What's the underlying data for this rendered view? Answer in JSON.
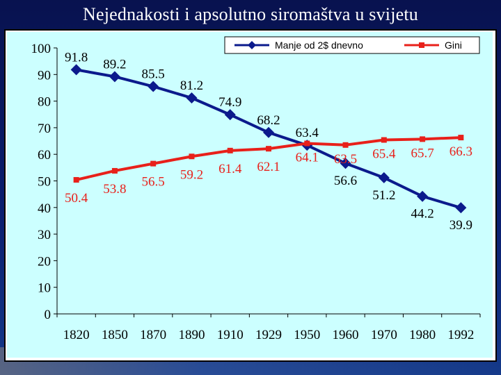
{
  "slide": {
    "title": "Nejednakosti i apsolutno siromaštva u svijetu"
  },
  "chart_data": {
    "type": "line",
    "categories": [
      "1820",
      "1850",
      "1870",
      "1890",
      "1910",
      "1929",
      "1950",
      "1960",
      "1970",
      "1980",
      "1992"
    ],
    "series": [
      {
        "name": "Manje od 2$ dnevno",
        "color": "#0b1a8c",
        "marker": "diamond",
        "values": [
          91.8,
          89.2,
          85.5,
          81.2,
          74.9,
          68.2,
          63.4,
          56.6,
          51.2,
          44.2,
          39.9
        ]
      },
      {
        "name": "Gini",
        "color": "#e8201a",
        "marker": "square",
        "values": [
          50.4,
          53.8,
          56.5,
          59.2,
          61.4,
          62.1,
          64.1,
          63.5,
          65.4,
          65.7,
          66.3
        ]
      }
    ],
    "ylim": [
      0,
      100
    ],
    "yticks": [
      0,
      10,
      20,
      30,
      40,
      50,
      60,
      70,
      80,
      90,
      100
    ],
    "legend": "top-right",
    "grid": false
  }
}
